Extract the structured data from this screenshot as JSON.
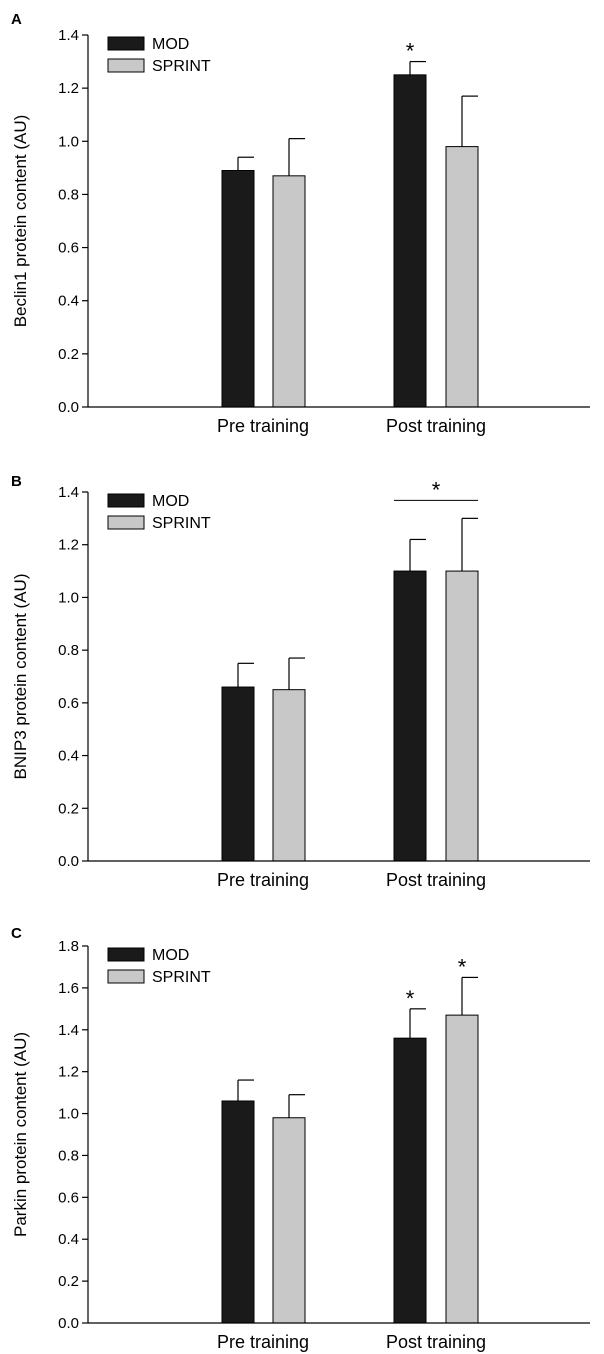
{
  "colors": {
    "MOD": "#1a1a1a",
    "SPRINT": "#c8c8c8",
    "axis": "#000000"
  },
  "chart_data": [
    {
      "type": "bar",
      "panel": "A",
      "ylabel": "Beclin1 protein content (AU)",
      "categories": [
        "Pre training",
        "Post training"
      ],
      "ylim": [
        0,
        1.4
      ],
      "yticks": [
        "0.0",
        "0.2",
        "0.4",
        "0.6",
        "0.8",
        "1.0",
        "1.2",
        "1.4"
      ],
      "legend": {
        "position": "top-left",
        "entries": [
          "MOD",
          "SPRINT"
        ]
      },
      "series": [
        {
          "name": "MOD",
          "values": [
            0.89,
            1.25
          ],
          "errors": [
            0.05,
            0.05
          ]
        },
        {
          "name": "SPRINT",
          "values": [
            0.87,
            0.98
          ],
          "errors": [
            0.14,
            0.19
          ]
        }
      ],
      "significance": [
        {
          "category": 1,
          "series": [
            0
          ],
          "label": "*"
        }
      ]
    },
    {
      "type": "bar",
      "panel": "B",
      "ylabel": "BNIP3 protein content (AU)",
      "categories": [
        "Pre training",
        "Post training"
      ],
      "ylim": [
        0,
        1.4
      ],
      "yticks": [
        "0.0",
        "0.2",
        "0.4",
        "0.6",
        "0.8",
        "1.0",
        "1.2",
        "1.4"
      ],
      "legend": {
        "position": "top-left",
        "entries": [
          "MOD",
          "SPRINT"
        ]
      },
      "series": [
        {
          "name": "MOD",
          "values": [
            0.66,
            1.1
          ],
          "errors": [
            0.09,
            0.12
          ]
        },
        {
          "name": "SPRINT",
          "values": [
            0.65,
            1.1
          ],
          "errors": [
            0.12,
            0.2
          ]
        }
      ],
      "significance": [
        {
          "category": 1,
          "series": [
            0,
            1
          ],
          "label": "*"
        }
      ]
    },
    {
      "type": "bar",
      "panel": "C",
      "ylabel": "Parkin protein content (AU)",
      "categories": [
        "Pre training",
        "Post training"
      ],
      "ylim": [
        0,
        1.8
      ],
      "yticks": [
        "0.0",
        "0.2",
        "0.4",
        "0.6",
        "0.8",
        "1.0",
        "1.2",
        "1.4",
        "1.6",
        "1.8"
      ],
      "legend": {
        "position": "top-left",
        "entries": [
          "MOD",
          "SPRINT"
        ]
      },
      "series": [
        {
          "name": "MOD",
          "values": [
            1.06,
            1.36
          ],
          "errors": [
            0.1,
            0.14
          ]
        },
        {
          "name": "SPRINT",
          "values": [
            0.98,
            1.47
          ],
          "errors": [
            0.11,
            0.18
          ]
        }
      ],
      "significance": [
        {
          "category": 1,
          "series": [
            0
          ],
          "label": "*"
        },
        {
          "category": 1,
          "series": [
            1
          ],
          "label": "*"
        }
      ]
    }
  ]
}
